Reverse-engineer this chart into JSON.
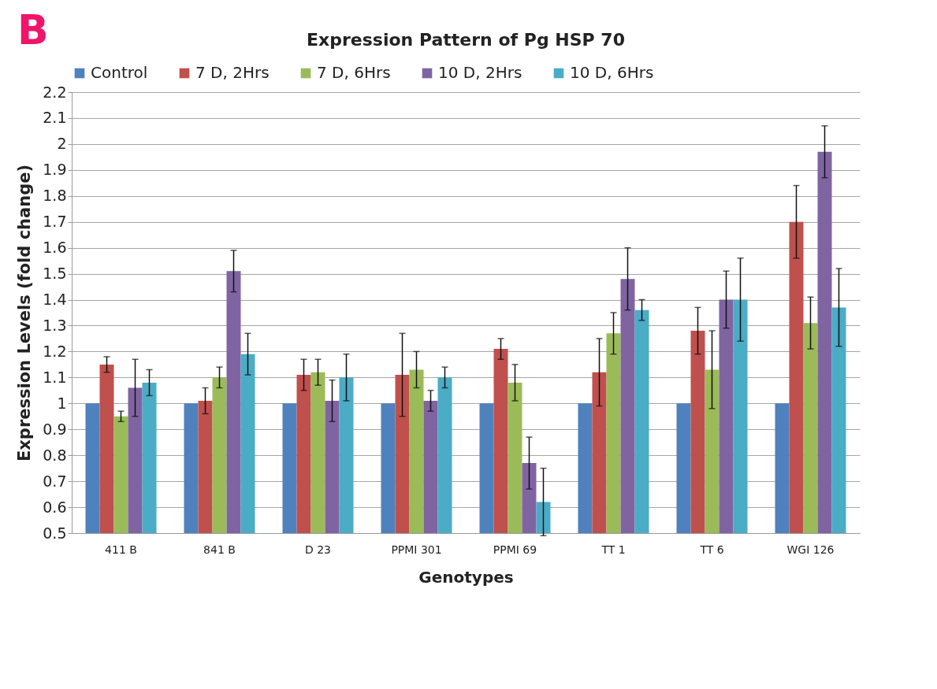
{
  "chart_data": {
    "type": "bar",
    "title": "Expression Pattern of Pg HSP 70",
    "xlabel": "Genotypes",
    "ylabel": "Expression Levels (fold change)",
    "annotations": [
      "B"
    ],
    "categories": [
      "411 B",
      "841 B",
      "D 23",
      "PPMI 301",
      "PPMI 69",
      "TT 1",
      "TT 6",
      "WGI 126"
    ],
    "series": [
      {
        "name": "Control",
        "color": "#4f81bd",
        "values": [
          1,
          1,
          1,
          1,
          1,
          1,
          1,
          1
        ]
      },
      {
        "name": "7 D, 2Hrs",
        "color": "#c0504d",
        "values": [
          1.15,
          1.01,
          1.11,
          1.11,
          1.21,
          1.12,
          1.28,
          1.7
        ],
        "errors": [
          0.03,
          0.05,
          0.06,
          0.16,
          0.04,
          0.13,
          0.09,
          0.14
        ]
      },
      {
        "name": "7 D, 6Hrs",
        "color": "#9bbb59",
        "values": [
          0.95,
          1.1,
          1.12,
          1.13,
          1.08,
          1.27,
          1.13,
          1.31
        ],
        "errors": [
          0.02,
          0.04,
          0.05,
          0.07,
          0.07,
          0.08,
          0.15,
          0.1
        ]
      },
      {
        "name": "10 D, 2Hrs",
        "color": "#8064a2",
        "values": [
          1.06,
          1.51,
          1.01,
          1.01,
          0.77,
          1.48,
          1.4,
          1.97
        ],
        "errors": [
          0.11,
          0.08,
          0.08,
          0.04,
          0.1,
          0.12,
          0.11,
          0.1
        ]
      },
      {
        "name": "10 D, 6Hrs",
        "color": "#4bacc6",
        "values": [
          1.08,
          1.19,
          1.1,
          1.1,
          0.62,
          1.36,
          1.4,
          1.37
        ],
        "errors": [
          0.05,
          0.08,
          0.09,
          0.04,
          0.13,
          0.04,
          0.16,
          0.15
        ]
      }
    ],
    "ylim": [
      0.5,
      2.2
    ],
    "yticks": [
      0.5,
      0.6,
      0.7,
      0.8,
      0.9,
      1,
      1.1,
      1.2,
      1.3,
      1.4,
      1.5,
      1.6,
      1.7,
      1.8,
      1.9,
      2,
      2.1,
      2.2
    ],
    "grid": "y",
    "legend": "top"
  }
}
